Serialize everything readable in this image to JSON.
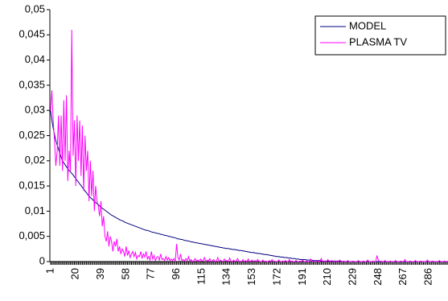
{
  "chart_data": {
    "type": "line",
    "x": [
      1,
      2,
      3,
      4,
      5,
      6,
      7,
      8,
      9,
      10,
      11,
      12,
      13,
      14,
      15,
      16,
      17,
      18,
      19,
      20,
      21,
      22,
      23,
      24,
      25,
      26,
      27,
      28,
      29,
      30,
      31,
      32,
      33,
      34,
      35,
      36,
      37,
      38,
      39,
      40,
      41,
      42,
      43,
      44,
      45,
      46,
      47,
      48,
      49,
      50,
      51,
      52,
      53,
      54,
      55,
      56,
      57,
      58,
      59,
      60,
      61,
      62,
      63,
      64,
      65,
      66,
      67,
      68,
      69,
      70,
      71,
      72,
      73,
      74,
      75,
      76,
      77,
      78,
      79,
      80,
      81,
      82,
      83,
      84,
      85,
      86,
      87,
      88,
      89,
      90,
      91,
      92,
      93,
      94,
      95,
      96,
      97,
      98,
      99,
      100,
      101,
      102,
      103,
      104,
      105,
      106,
      107,
      108,
      109,
      110,
      111,
      112,
      113,
      114,
      115,
      116,
      117,
      118,
      119,
      120,
      121,
      122,
      123,
      124,
      125,
      126,
      127,
      128,
      129,
      130,
      131,
      132,
      133,
      134,
      135,
      136,
      137,
      138,
      139,
      140,
      141,
      142,
      143,
      144,
      145,
      146,
      147,
      148,
      149,
      150,
      151,
      152,
      153,
      154,
      155,
      156,
      157,
      158,
      159,
      160,
      161,
      162,
      163,
      164,
      165,
      166,
      167,
      168,
      169,
      170,
      171,
      172,
      173,
      174,
      175,
      176,
      177,
      178,
      179,
      180,
      181,
      182,
      183,
      184,
      185,
      186,
      187,
      188,
      189,
      190,
      191,
      192,
      193,
      194,
      195,
      196,
      197,
      198,
      199,
      200,
      201,
      202,
      203,
      204,
      205,
      206,
      207,
      208,
      209,
      210,
      211,
      212,
      213,
      214,
      215,
      216,
      217,
      218,
      219,
      220,
      221,
      222,
      223,
      224,
      225,
      226,
      227,
      228,
      229,
      230,
      231,
      232,
      233,
      234,
      235,
      236,
      237,
      238,
      239,
      240,
      241,
      242,
      243,
      244,
      245,
      246,
      247,
      248,
      249,
      250,
      251,
      252,
      253,
      254,
      255,
      256,
      257,
      258,
      259,
      260,
      261,
      262,
      263,
      264,
      265,
      266,
      267,
      268,
      269,
      270,
      271,
      272,
      273,
      274,
      275,
      276,
      277,
      278,
      279,
      280,
      281,
      282,
      283,
      284,
      285,
      286,
      287,
      288,
      289,
      290,
      291,
      292,
      293,
      294,
      295,
      296,
      297,
      298,
      299,
      300
    ],
    "xlim": [
      0.5,
      300.5
    ],
    "xticks": [
      1,
      20,
      39,
      58,
      77,
      96,
      115,
      134,
      153,
      172,
      191,
      210,
      229,
      248,
      267,
      286
    ],
    "ylim": [
      0,
      0.05
    ],
    "yticks": [
      0,
      {
        "value": 0.005,
        "label": "0,005"
      },
      {
        "value": 0.01,
        "label": "0,01"
      },
      {
        "value": 0.015,
        "label": "0,015"
      },
      {
        "value": 0.02,
        "label": "0,02"
      },
      {
        "value": 0.025,
        "label": "0,025"
      },
      {
        "value": 0.03,
        "label": "0,03"
      },
      {
        "value": 0.035,
        "label": "0,035"
      },
      {
        "value": 0.04,
        "label": "0,04"
      },
      {
        "value": 0.045,
        "label": "0,045"
      },
      {
        "value": 0.05,
        "label": "0,05"
      }
    ],
    "legend": "top-right",
    "series": [
      {
        "name": "MODEL",
        "color": "#000080",
        "values": [
          0.03,
          0.028,
          0.0265,
          0.0252,
          0.024,
          0.0231,
          0.0223,
          0.0215,
          0.0207,
          0.02,
          0.0196,
          0.0192,
          0.0188,
          0.0184,
          0.0181,
          0.0178,
          0.0175,
          0.0172,
          0.0168,
          0.0165,
          0.0161,
          0.0158,
          0.0154,
          0.0151,
          0.0147,
          0.0144,
          0.014,
          0.0137,
          0.0133,
          0.013,
          0.0127,
          0.0125,
          0.0122,
          0.012,
          0.0117,
          0.0115,
          0.0113,
          0.011,
          0.0108,
          0.0106,
          0.0104,
          0.0102,
          0.01,
          0.0098,
          0.0096,
          0.0094,
          0.0092,
          0.0091,
          0.0089,
          0.0088,
          0.0086,
          0.0085,
          0.0083,
          0.0082,
          0.0081,
          0.008,
          0.0078,
          0.0077,
          0.0076,
          0.0075,
          0.0074,
          0.0073,
          0.0072,
          0.0071,
          0.007,
          0.0069,
          0.0068,
          0.0067,
          0.0066,
          0.0065,
          0.0064,
          0.0063,
          0.0062,
          0.0062,
          0.0061,
          0.006,
          0.0059,
          0.0058,
          0.0058,
          0.0057,
          0.0056,
          0.0056,
          0.0055,
          0.0054,
          0.0054,
          0.0053,
          0.0052,
          0.0052,
          0.0051,
          0.005,
          0.005,
          0.0049,
          0.0048,
          0.0048,
          0.0047,
          0.0046,
          0.0045,
          0.0045,
          0.0044,
          0.0044,
          0.0043,
          0.0042,
          0.0042,
          0.0041,
          0.0041,
          0.004,
          0.0039,
          0.0039,
          0.0038,
          0.0038,
          0.0037,
          0.0037,
          0.0036,
          0.0036,
          0.0035,
          0.0035,
          0.0034,
          0.0034,
          0.0033,
          0.0033,
          0.0032,
          0.0032,
          0.0031,
          0.0031,
          0.003,
          0.003,
          0.0029,
          0.0029,
          0.0028,
          0.0028,
          0.0027,
          0.0027,
          0.0026,
          0.0026,
          0.0026,
          0.0025,
          0.0025,
          0.0024,
          0.0024,
          0.0024,
          0.0023,
          0.0023,
          0.0022,
          0.0022,
          0.0022,
          0.0021,
          0.0021,
          0.002,
          0.002,
          0.0019,
          0.0019,
          0.0018,
          0.0018,
          0.0018,
          0.0017,
          0.0017,
          0.0016,
          0.0016,
          0.0016,
          0.0015,
          0.0015,
          0.0014,
          0.0014,
          0.0014,
          0.0013,
          0.0013,
          0.0012,
          0.0012,
          0.0011,
          0.0011,
          0.001,
          0.001,
          0.001,
          0.0009,
          0.0009,
          0.0009,
          0.0008,
          0.0008,
          0.0008,
          0.0007,
          0.0007,
          0.0007,
          0.0006,
          0.0006,
          0.0006,
          0.0005,
          0.0005,
          0.0005,
          0.0004,
          0.0004,
          0.0004,
          0.0004,
          0.0004,
          0.0003,
          0.0003,
          0.0003,
          0.0003,
          0.0003,
          0.0002,
          0.0002,
          0.0002,
          0.0002,
          0.0002,
          0.0002,
          0.0001,
          0.0001,
          0.0001,
          0.0001,
          0.0001,
          0.0001,
          0.0001,
          0.0001,
          0.0001,
          0.0001,
          0.0001,
          0.0001,
          0.0001,
          0.0001,
          0.0001,
          0.0001,
          0,
          0,
          0,
          0,
          0,
          0,
          0,
          0,
          0,
          0,
          0,
          0,
          0,
          0,
          0,
          0,
          0,
          0,
          0,
          0,
          0,
          0,
          0,
          0,
          0,
          0,
          0,
          0,
          0,
          0,
          0,
          0,
          0,
          0,
          0,
          0,
          0,
          0,
          0,
          0,
          0,
          0,
          0,
          0,
          0,
          0,
          0,
          0,
          0,
          0,
          0,
          0,
          0,
          0,
          0,
          0,
          0,
          0,
          0,
          0,
          0,
          0,
          0,
          0,
          0,
          0,
          0,
          0,
          0,
          0,
          0,
          0,
          0,
          0,
          0,
          0,
          0,
          0,
          0,
          0
        ]
      },
      {
        "name": "PLASMA TV",
        "color": "#ff00ff",
        "values": [
          0.03,
          0.034,
          0.028,
          0.024,
          0.019,
          0.022,
          0.029,
          0.019,
          0.029,
          0.018,
          0.032,
          0.02,
          0.033,
          0.016,
          0.022,
          0.018,
          0.046,
          0.021,
          0.028,
          0.015,
          0.029,
          0.02,
          0.028,
          0.017,
          0.027,
          0.014,
          0.025,
          0.018,
          0.022,
          0.012,
          0.02,
          0.013,
          0.018,
          0.01,
          0.015,
          0.012,
          0.011,
          0.009,
          0.012,
          0.007,
          0.009,
          0.005,
          0.004,
          0.006,
          0.003,
          0.005,
          0.004,
          0.002,
          0.004,
          0.003,
          0.0045,
          0.002,
          0.003,
          0.0015,
          0.0025,
          0.002,
          0.001,
          0.003,
          0.0012,
          0.0022,
          0.0008,
          0.0015,
          0.002,
          0.001,
          0.0018,
          0.0005,
          0.0012,
          0.001,
          0.002,
          0.0006,
          0.0015,
          0.0009,
          0.002,
          0.0005,
          0.001,
          0.0003,
          0.002,
          0.0005,
          0.0012,
          0.0002,
          0.0008,
          0.001,
          0.0003,
          0.0015,
          0.0004,
          0.0006,
          0.0002,
          0.001,
          0.0003,
          0.0008,
          0.0002,
          0.0005,
          0.0002,
          0.0006,
          0.0001,
          0.0035,
          0.0008,
          0.0003,
          0.0015,
          0.0002,
          0.0004,
          0.0001,
          0.0006,
          0.0002,
          0.001,
          0.0001,
          0.0004,
          0,
          0.0002,
          0.0006,
          0.0001,
          0.0003,
          0,
          0.0005,
          0.0001,
          0.0002,
          0.0008,
          0,
          0.0003,
          0.0001,
          0.0006,
          0,
          0.0002,
          0.0004,
          0,
          0.0001,
          0.0008,
          0,
          0.0003,
          0.0001,
          0,
          0.0005,
          0.0001,
          0.0002,
          0,
          0.0007,
          0.0001,
          0,
          0.0003,
          0,
          0.0002,
          0.0006,
          0,
          0.0001,
          0,
          0.0004,
          0,
          0.0002,
          0,
          0.0005,
          0,
          0.0001,
          0.0003,
          0,
          0.0002,
          0,
          0.0004,
          0.0001,
          0,
          0,
          0.0003,
          0,
          0.0001,
          0,
          0,
          0.0002,
          0,
          0.0004,
          0,
          0.0001,
          0,
          0,
          0.0003,
          0,
          0,
          0.0001,
          0,
          0.0002,
          0,
          0,
          0.0004,
          0,
          0.0001,
          0,
          0,
          0.0002,
          0,
          0,
          0.0001,
          0,
          0.0003,
          0,
          0,
          0.0001,
          0,
          0,
          0.0005,
          0,
          0.0001,
          0,
          0,
          0.0002,
          0,
          0,
          0.0006,
          0,
          0.0001,
          0,
          0,
          0.0004,
          0,
          0,
          0.0002,
          0,
          0,
          0.0001,
          0,
          0,
          0.0003,
          0,
          0,
          0.0001,
          0,
          0,
          0.0002,
          0,
          0,
          0,
          0.0001,
          0,
          0,
          0,
          0.0002,
          0,
          0,
          0,
          0.0001,
          0,
          0,
          0.0003,
          0,
          0,
          0,
          0.0001,
          0,
          0,
          0.0012,
          0.0003,
          0,
          0.0001,
          0,
          0,
          0.0002,
          0,
          0,
          0,
          0.0001,
          0,
          0,
          0,
          0.0002,
          0,
          0,
          0,
          0.0001,
          0,
          0,
          0.0004,
          0,
          0,
          0,
          0.0001,
          0,
          0,
          0,
          0.0002,
          0,
          0,
          0,
          0.0001,
          0,
          0,
          0,
          0,
          0.0003,
          0,
          0,
          0,
          0.0001,
          0,
          0,
          0,
          0,
          0.0002,
          0,
          0,
          0,
          0.0001,
          0,
          0
        ]
      }
    ]
  }
}
